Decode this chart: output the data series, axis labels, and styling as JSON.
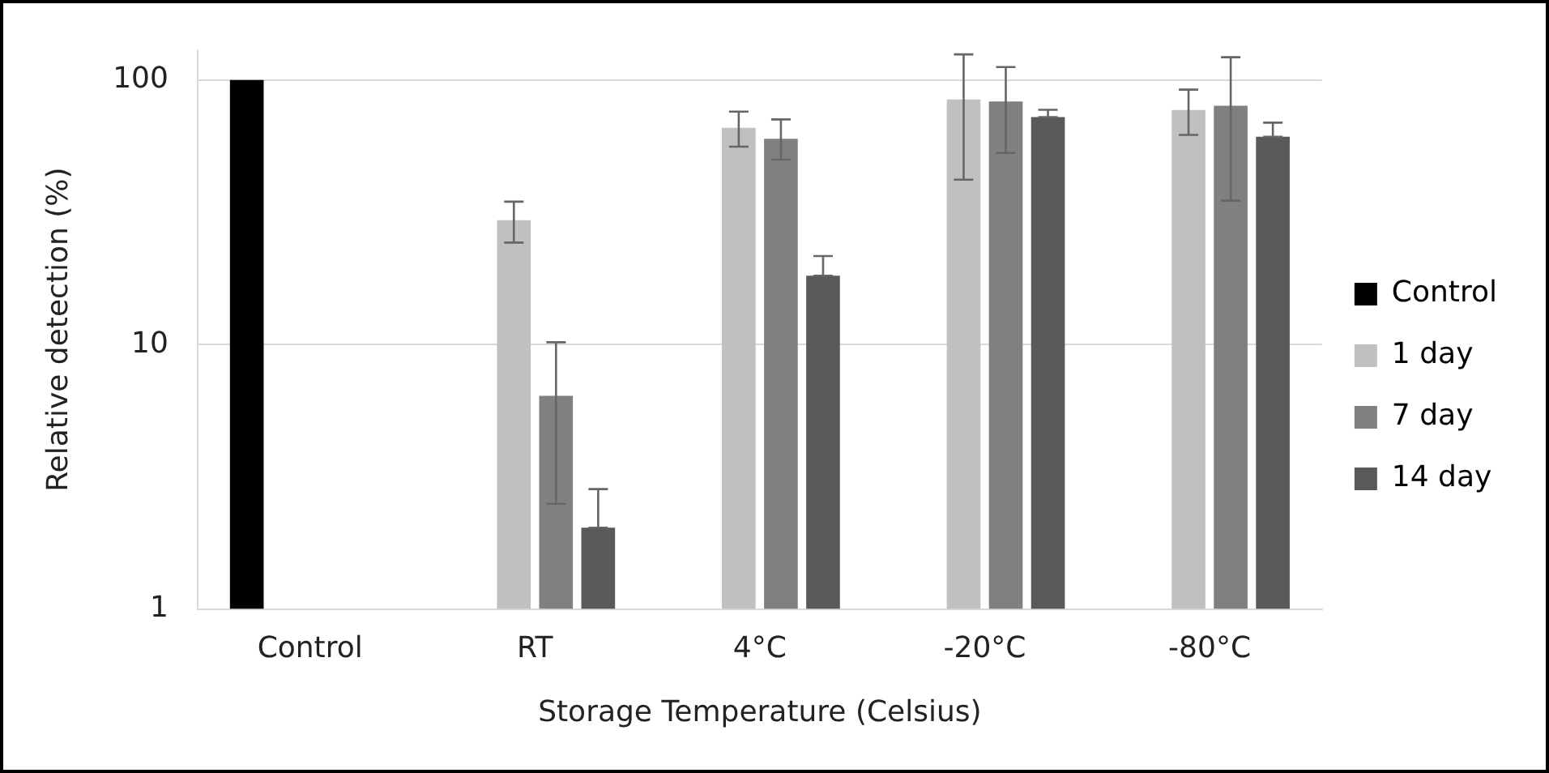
{
  "chart_data": {
    "type": "bar",
    "xlabel": "Storage Temperature (Celsius)",
    "ylabel": "Relative detection (%)",
    "categories": [
      "Control",
      "RT",
      "4°C",
      "-20°C",
      "-80°C"
    ],
    "series": [
      {
        "name": "Control",
        "color": "#000000",
        "values": [
          100,
          null,
          null,
          null,
          null
        ]
      },
      {
        "name": "1 day",
        "color": "#c0c0c0",
        "values": [
          null,
          29.5,
          66,
          84.5,
          77
        ],
        "errors": [
          null,
          [
            24.3,
            34.7
          ],
          [
            56,
            76
          ],
          [
            42,
            125
          ],
          [
            62,
            92
          ]
        ]
      },
      {
        "name": "7 day",
        "color": "#808080",
        "values": [
          null,
          6.4,
          60,
          83,
          80
        ],
        "errors": [
          null,
          [
            2.5,
            10.2
          ],
          [
            50,
            71
          ],
          [
            53,
            112
          ],
          [
            35,
            122
          ]
        ]
      },
      {
        "name": "14 day",
        "color": "#595959",
        "values": [
          null,
          2.03,
          18.2,
          72.4,
          61
        ],
        "errors": [
          null,
          [
            2.03,
            2.84
          ],
          [
            18.2,
            21.6
          ],
          [
            72.4,
            77.2
          ],
          [
            61,
            69
          ]
        ]
      }
    ],
    "log": "y",
    "ylim": [
      1,
      130
    ],
    "yticks": [
      1,
      10,
      100
    ],
    "grid": "y",
    "legend": "right"
  }
}
